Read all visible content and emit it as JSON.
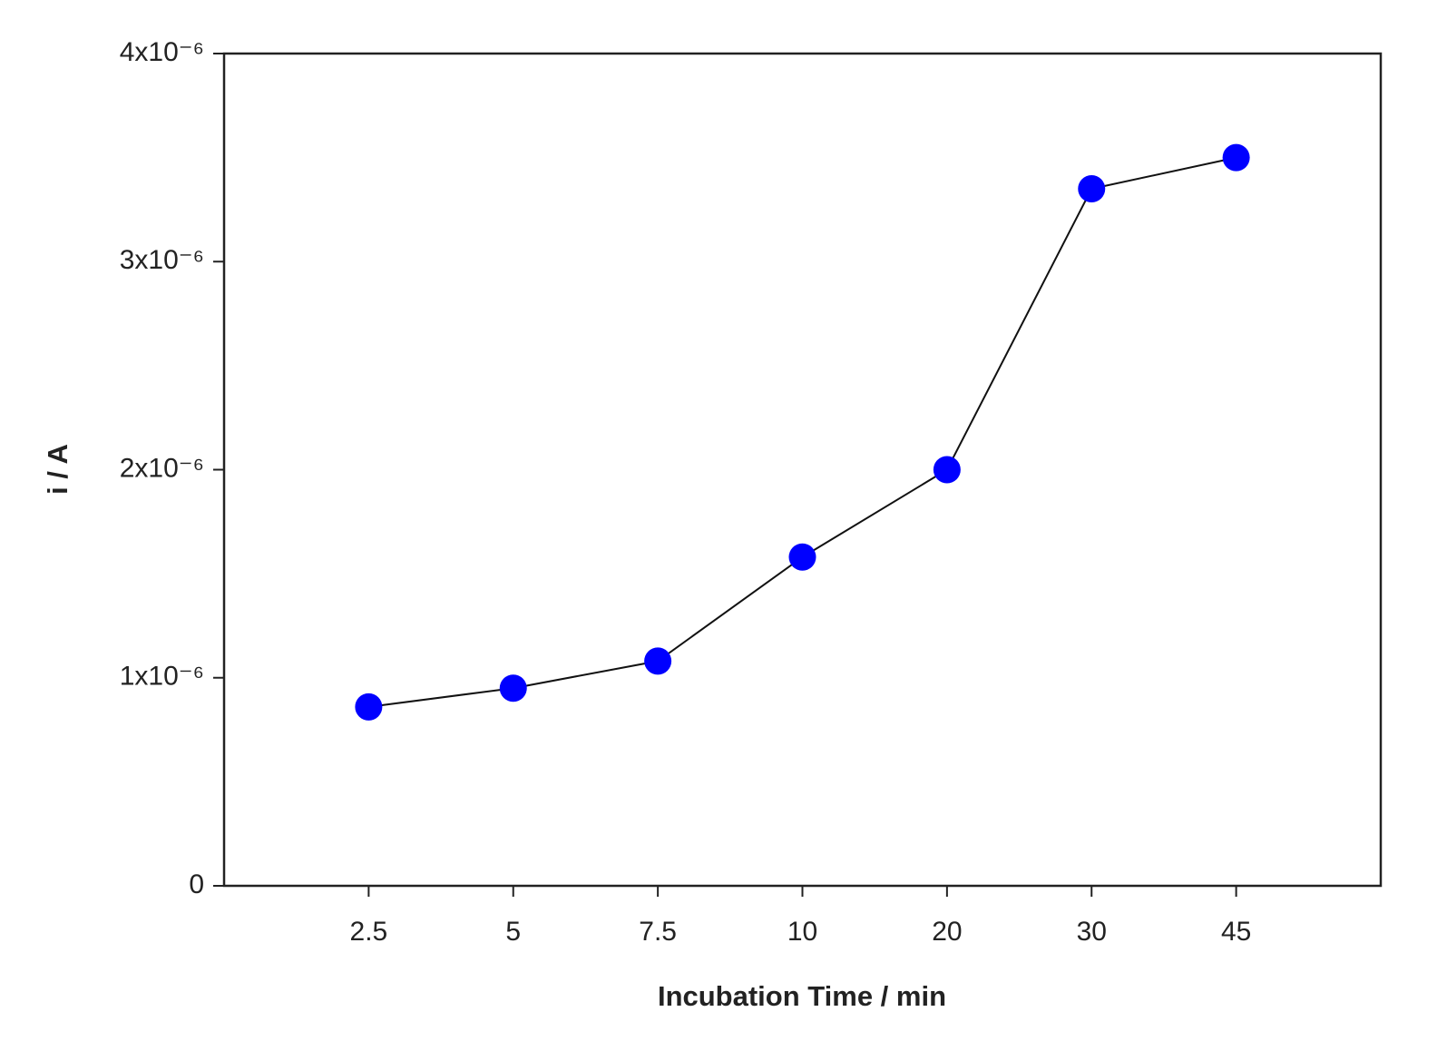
{
  "chart_data": {
    "type": "line",
    "xlabel": "Incubation Time / min",
    "ylabel": "i / A",
    "categories": [
      "2.5",
      "5",
      "7.5",
      "10",
      "20",
      "30",
      "45"
    ],
    "series": [
      {
        "name": "i",
        "color": "#0000ff",
        "values": [
          8.6e-07,
          9.5e-07,
          1.08e-06,
          1.58e-06,
          2e-06,
          3.35e-06,
          3.5e-06
        ]
      }
    ],
    "ylim": [
      0,
      4e-06
    ],
    "yticks": [
      0,
      {
        "value": 1e-06,
        "label": "1x10⁻⁶"
      },
      {
        "value": 2e-06,
        "label": "2x10⁻⁶"
      },
      {
        "value": 3e-06,
        "label": "3x10⁻⁶"
      },
      {
        "value": 4e-06,
        "label": "4x10⁻⁶"
      }
    ],
    "grid": false
  }
}
